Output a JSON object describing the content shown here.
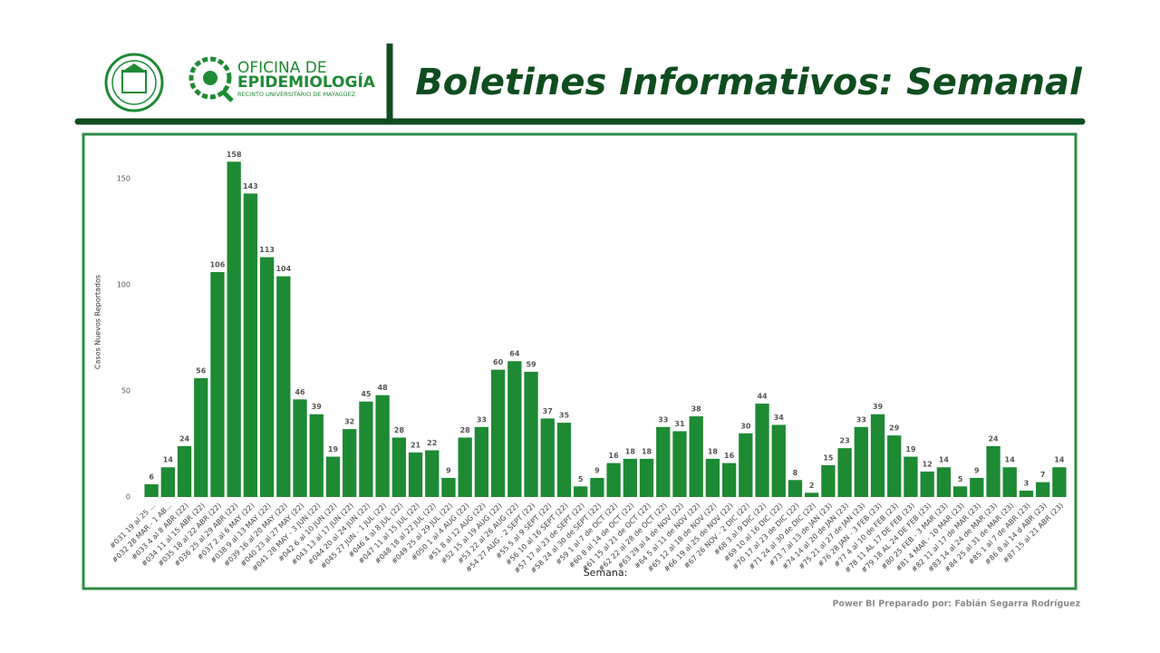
{
  "header": {
    "logo_line1": "OFICINA DE",
    "logo_line2": "EPIDEMIOLOGÍA",
    "logo_line3": "RECINTO UNIVERSITARIO DE MAYAGÜEZ",
    "title": "Boletines Informativos: Semanal"
  },
  "footer": {
    "credit": "Power BI Preparado por: Fabián Segarra Rodríguez"
  },
  "chart_data": {
    "type": "bar",
    "y_label": "Casos Nuevos Reportados",
    "x_label": "Semana:",
    "color": "#1e8a34",
    "ylim": [
      0,
      160
    ],
    "yticks": [
      0,
      50,
      100,
      150
    ],
    "grid": false,
    "categories": [
      "#031 19 al 25 ...",
      "#032 28 MAR - 1 AB...",
      "#033 4 al 8 ABR (22)",
      "#034 11 al 15 ABR (22)",
      "#035 18 al 22 ABR (22)",
      "#036 25 al 29 ABR (22)",
      "#037 2 al 6 MAY (22)",
      "#038 9 al 13 MAY (22)",
      "#039 16 al 20 MAY (22)",
      "#040 23 al 27 MAY (22)",
      "#041 28 MAY - 3 JUN (22)",
      "#042 6 al 10 JUN (22)",
      "#043 13 al 17 JUN (22)",
      "#044 20 al 24 JUN (22)",
      "#045 27 JUN - 1 JUL (22)",
      "#046 4 al 8 JUL (22)",
      "#047 11 al 15 JUL (22)",
      "#048 18 al 22 JUL (22)",
      "#049 25 al 29 JUL (22)",
      "#050 1 al 4 AUG (22)",
      "#51 8 al 12 AUG (22)",
      "#52 15 al 19 AUG (22)",
      "#53 22 al 26 AUG (22)",
      "#54 27 AUG - 2 SEPT (22)",
      "#55 5 al 9 SEPT (22)",
      "#56 10 al 16 SEPT (22)",
      "#57 17 al 23 de SEPT (22)",
      "#58 24 al 30 de SEPT (22)",
      "#59 1 al 7 de OCT (22)",
      "#60 8 al 14 de OCT (22)",
      "#61 15 al 21 de OCT (22)",
      "#62 22 al 28 de OCT (22)",
      "#63 29 al 4 de NOV (22)",
      "#64 5 al 11 de NOV (22)",
      "#65 12 al 18 de NOV (22)",
      "#66 19 al 25 de NOV (22)",
      "#67 26 NOV - 2 DIC (22)",
      "#68 3 al 9 DIC (22)",
      "#69 10 al 16 DIC (22)",
      "#70 17 al 23 de DIC (22)",
      "#71 24 al 30 de DIC (22)",
      "#73 7 al 13 de JAN (23)",
      "#74 14 al 20 de JAN (23)",
      "#75 21 al 27 de JAN (23)",
      "#76 28 JAN - 3 FEB (23)",
      "#77 4 al 10 de FEB (23)",
      "#78 11 AL 17 DE FEB (23)",
      "#79 18 AL 24 DE FEB (23)",
      "#80 25 FEB - 3 MAR (23)",
      "#81 4 MAR - 10 MAR (23)",
      "#82 11 al 17 de MAR (23)",
      "#83 14 al 24 de MAR (23)",
      "#84 25 al 31 de MAR (23)",
      "#85 1 al 7 de ABR (23)",
      "#86 8 al 14 d ABR (23)",
      "#87 15 al 21 ABR (23)"
    ],
    "values": [
      6,
      14,
      24,
      56,
      106,
      158,
      143,
      113,
      104,
      46,
      39,
      19,
      32,
      45,
      48,
      28,
      21,
      22,
      9,
      28,
      33,
      60,
      64,
      59,
      37,
      35,
      5,
      9,
      16,
      18,
      18,
      33,
      31,
      38,
      18,
      16,
      30,
      44,
      34,
      8,
      2,
      15,
      23,
      33,
      39,
      29,
      19,
      12,
      14,
      5,
      9,
      24,
      14,
      3,
      7,
      14
    ]
  }
}
